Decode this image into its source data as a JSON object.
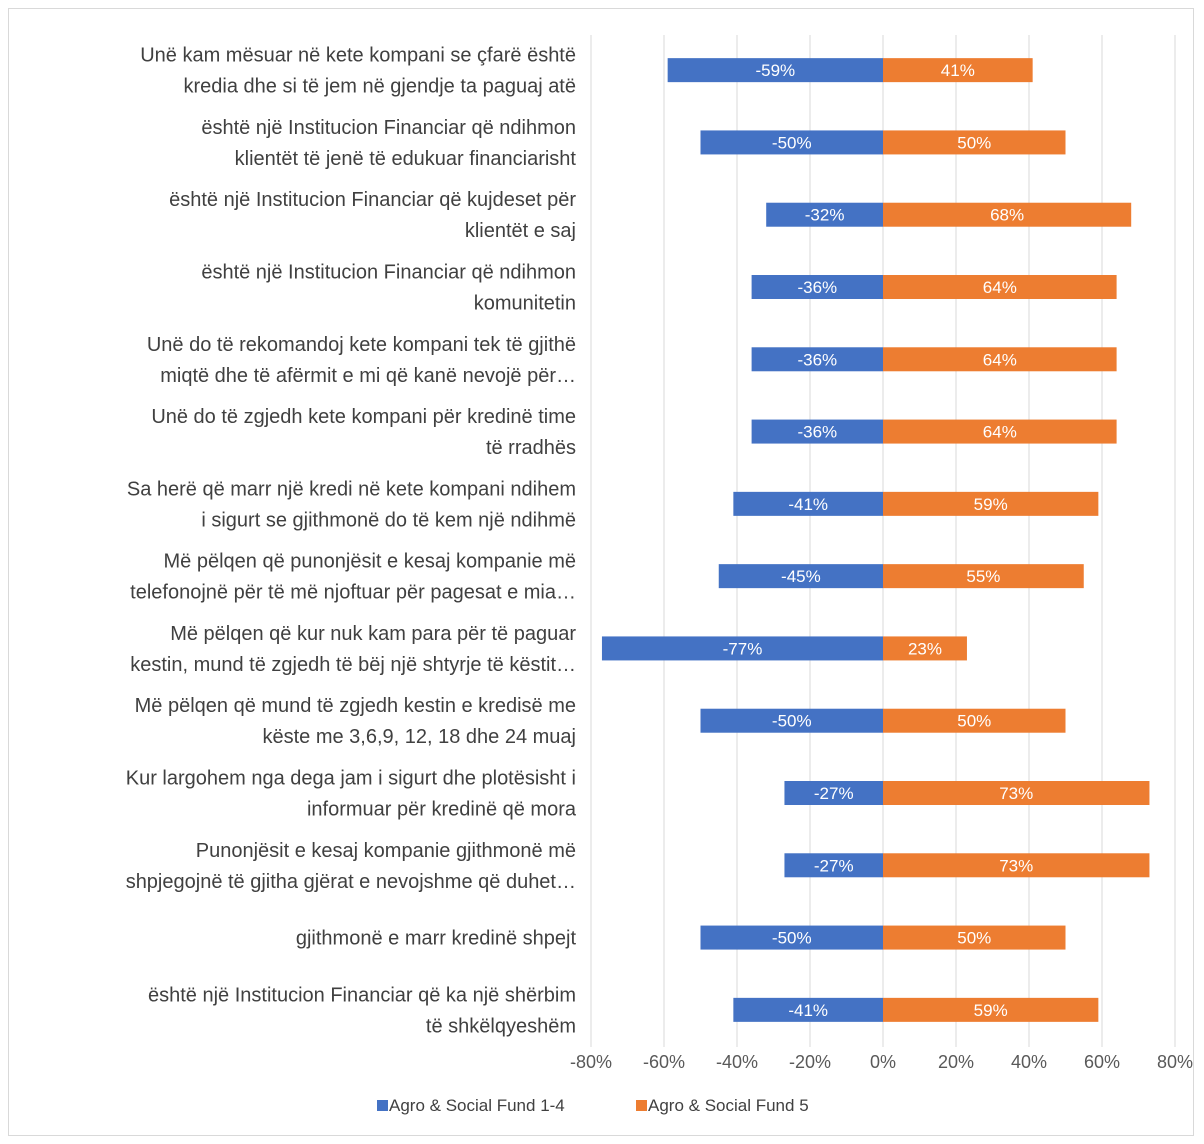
{
  "chart_data": {
    "type": "bar",
    "orientation": "horizontal",
    "stacked": "diverging",
    "categories": [
      [
        "Unë kam mësuar në kete kompani se çfarë është",
        "kredia dhe si të jem në gjendje ta paguaj atë"
      ],
      [
        "është një Institucion Financiar që ndihmon",
        "klientët të jenë të edukuar financiarisht"
      ],
      [
        "është një Institucion Financiar që kujdeset për",
        "klientët e saj"
      ],
      [
        "është një Institucion Financiar që ndihmon",
        "komunitetin"
      ],
      [
        "Unë do të rekomandoj  kete kompani tek të gjithë",
        "miqtë dhe të afërmit e mi që kanë nevojë për…"
      ],
      [
        "Unë do të zgjedh kete kompani për kredinë time",
        "të rradhës"
      ],
      [
        "Sa herë që marr një kredi në kete kompani ndihem",
        "i sigurt se gjithmonë do të kem një ndihmë"
      ],
      [
        "Më pëlqen që punonjësit e kesaj kompanie më",
        "telefonojnë për të më njoftuar për pagesat e mia…"
      ],
      [
        "Më pëlqen që kur nuk kam para për të paguar",
        "kestin, mund të zgjedh të bëj një shtyrje të këstit…"
      ],
      [
        "Më pëlqen që mund të zgjedh kestin e kredisë me",
        "këste me 3,6,9, 12, 18 dhe 24 muaj"
      ],
      [
        "Kur largohem nga dega jam i sigurt dhe plotësisht i",
        "informuar për kredinë që mora"
      ],
      [
        "Punonjësit e kesaj kompanie gjithmonë më",
        "shpjegojnë të gjitha gjërat e nevojshme që duhet…"
      ],
      [
        "gjithmonë e marr kredinë shpejt"
      ],
      [
        "është një Institucion Financiar që ka një shërbim",
        "të shkëlqyeshëm"
      ]
    ],
    "series": [
      {
        "name": "Agro & Social Fund 1-4",
        "color": "#4472C4",
        "values": [
          -59,
          -50,
          -32,
          -36,
          -36,
          -36,
          -41,
          -45,
          -77,
          -50,
          -27,
          -27,
          -50,
          -41
        ],
        "labels": [
          "-59%",
          "-50%",
          "-32%",
          "-36%",
          "-36%",
          "-36%",
          "-41%",
          "-45%",
          "-77%",
          "-50%",
          "-27%",
          "-27%",
          "-50%",
          "-41%"
        ]
      },
      {
        "name": "Agro & Social Fund 5",
        "color": "#ED7D31",
        "values": [
          41,
          50,
          68,
          64,
          64,
          64,
          59,
          55,
          23,
          50,
          73,
          73,
          50,
          59
        ],
        "labels": [
          "41%",
          "50%",
          "68%",
          "64%",
          "64%",
          "64%",
          "59%",
          "55%",
          "23%",
          "50%",
          "73%",
          "73%",
          "50%",
          "59%"
        ]
      }
    ],
    "xlim": [
      -80,
      80
    ],
    "xticks": [
      -80,
      -60,
      -40,
      -20,
      0,
      20,
      40,
      60,
      80
    ],
    "xtick_labels": [
      "-80%",
      "-60%",
      "-40%",
      "-20%",
      "0%",
      "20%",
      "40%",
      "60%",
      "80%"
    ],
    "grid": "vertical",
    "legend_position": "bottom",
    "gridline_color": "#d9d9d9"
  }
}
